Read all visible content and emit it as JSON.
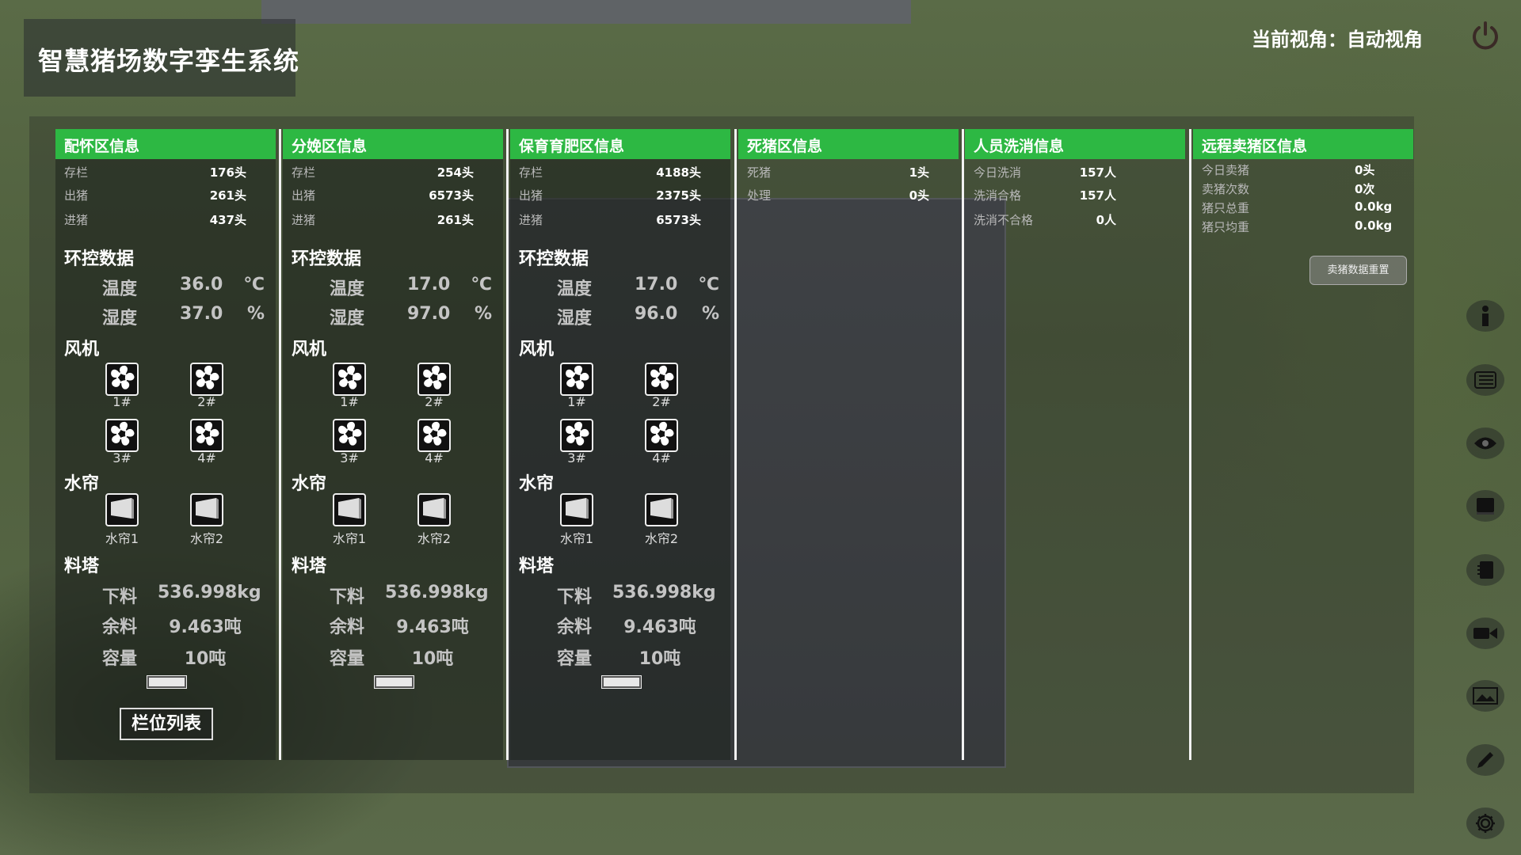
{
  "app_title": "智慧猪场数字孪生系统",
  "view_label": "当前视角：自动视角",
  "labels": {
    "env": "环控数据",
    "temp": "温度",
    "hum": "湿度",
    "temp_unit": "℃",
    "hum_unit": "%",
    "fan": "风机",
    "curtain": "水帘",
    "tower": "料塔",
    "feed_down": "下料",
    "feed_left": "余料",
    "capacity": "容量"
  },
  "env_panels": [
    {
      "title": "配怀区信息",
      "stats": [
        {
          "label": "存栏",
          "value": "176头"
        },
        {
          "label": "出猪",
          "value": "261头"
        },
        {
          "label": "进猪",
          "value": "437头"
        }
      ],
      "temperature": "36.0",
      "humidity": "37.0",
      "fans": [
        "1#",
        "2#",
        "3#",
        "4#"
      ],
      "curtains": [
        "水帘1",
        "水帘2"
      ],
      "feed_down": "536.998kg",
      "feed_left": "9.463吨",
      "capacity": "10吨",
      "list_button": "栏位列表"
    },
    {
      "title": "分娩区信息",
      "stats": [
        {
          "label": "存栏",
          "value": "254头"
        },
        {
          "label": "出猪",
          "value": "6573头"
        },
        {
          "label": "进猪",
          "value": "261头"
        }
      ],
      "temperature": "17.0",
      "humidity": "97.0",
      "fans": [
        "1#",
        "2#",
        "3#",
        "4#"
      ],
      "curtains": [
        "水帘1",
        "水帘2"
      ],
      "feed_down": "536.998kg",
      "feed_left": "9.463吨",
      "capacity": "10吨"
    },
    {
      "title": "保育育肥区信息",
      "stats": [
        {
          "label": "存栏",
          "value": "4188头"
        },
        {
          "label": "出猪",
          "value": "2375头"
        },
        {
          "label": "进猪",
          "value": "6573头"
        }
      ],
      "temperature": "17.0",
      "humidity": "96.0",
      "fans": [
        "1#",
        "2#",
        "3#",
        "4#"
      ],
      "curtains": [
        "水帘1",
        "水帘2"
      ],
      "feed_down": "536.998kg",
      "feed_left": "9.463吨",
      "capacity": "10吨"
    }
  ],
  "info_panels": [
    {
      "title": "死猪区信息",
      "stats": [
        {
          "label": "死猪",
          "value": "1头"
        },
        {
          "label": "处理",
          "value": "0头"
        }
      ]
    },
    {
      "title": "人员洗消信息",
      "stats": [
        {
          "label": "今日洗消",
          "value": "157人"
        },
        {
          "label": "洗消合格",
          "value": "157人"
        },
        {
          "label": "洗消不合格",
          "value": "0人"
        }
      ]
    },
    {
      "title": "远程卖猪区信息",
      "stats": [
        {
          "label": "今日卖猪",
          "value": "0头"
        },
        {
          "label": "卖猪次数",
          "value": "0次"
        },
        {
          "label": "猪只总重",
          "value": "0.0kg"
        },
        {
          "label": "猪只均重",
          "value": "0.0kg"
        }
      ],
      "reset_button": "卖猪数据重置"
    }
  ],
  "side_icons": [
    "info-icon",
    "list-icon",
    "eye-icon",
    "book-icon",
    "notebook-icon",
    "video-camera-icon",
    "image-icon",
    "pencil-icon",
    "gear-icon"
  ],
  "colors": {
    "header_green": "#2db843"
  }
}
